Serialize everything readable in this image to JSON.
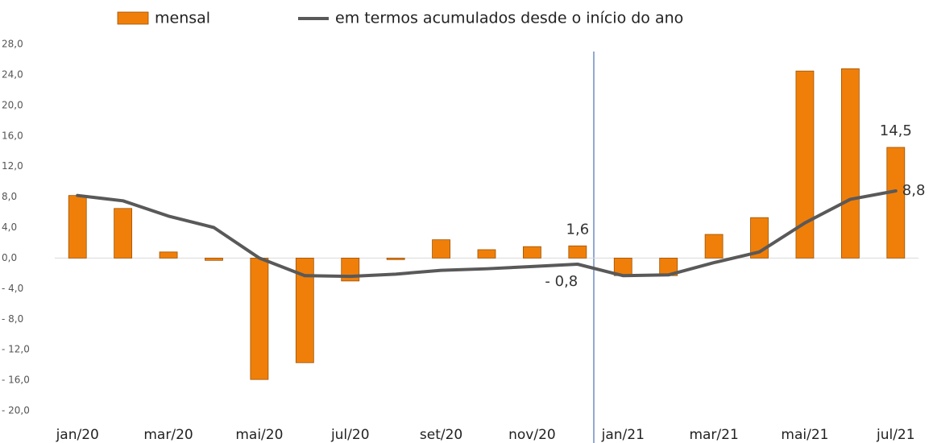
{
  "chart_data": {
    "type": "bar_line",
    "categories": [
      "jan/20",
      null,
      "mar/20",
      null,
      "mai/20",
      null,
      "jul/20",
      null,
      "set/20",
      null,
      "nov/20",
      null,
      "jan/21",
      null,
      "mar/21",
      null,
      "mai/21",
      null,
      "jul/21"
    ],
    "series": [
      {
        "name": "mensal",
        "type": "bar",
        "color": "#f07f09",
        "values": [
          8.2,
          6.5,
          0.8,
          -0.3,
          -15.9,
          -13.7,
          -3.0,
          -0.2,
          2.4,
          1.1,
          1.5,
          1.6,
          -2.3,
          -2.3,
          3.1,
          5.3,
          24.5,
          24.8,
          14.5
        ],
        "value_labels": [
          null,
          null,
          null,
          null,
          null,
          null,
          null,
          null,
          null,
          null,
          null,
          "1,6",
          null,
          null,
          null,
          null,
          null,
          null,
          "14,5"
        ]
      },
      {
        "name": "em termos acumulados desde o início do ano",
        "type": "line",
        "color": "#595959",
        "values": [
          8.2,
          7.5,
          5.5,
          4.0,
          0.0,
          -2.3,
          -2.4,
          -2.1,
          -1.6,
          -1.4,
          -1.1,
          -0.8,
          -2.3,
          -2.2,
          -0.6,
          0.8,
          4.6,
          7.7,
          8.8
        ],
        "value_labels": [
          null,
          null,
          null,
          null,
          null,
          null,
          null,
          null,
          null,
          null,
          null,
          "- 0,8",
          null,
          null,
          null,
          null,
          null,
          null,
          "8,8"
        ]
      }
    ],
    "ylim": [
      -20,
      28
    ],
    "yticks": [
      {
        "value": 28,
        "label": "28,0"
      },
      {
        "value": 24,
        "label": "24,0"
      },
      {
        "value": 20,
        "label": "20,0"
      },
      {
        "value": 16,
        "label": "16,0"
      },
      {
        "value": 12,
        "label": "12,0"
      },
      {
        "value": 8,
        "label": "8,0"
      },
      {
        "value": 4,
        "label": "4,0"
      },
      {
        "value": 0,
        "label": "0,0"
      },
      {
        "value": -4,
        "label": "- 4,0"
      },
      {
        "value": -8,
        "label": "- 8,0"
      },
      {
        "value": -12,
        "label": "- 12,0"
      },
      {
        "value": -16,
        "label": "- 16,0"
      },
      {
        "value": -20,
        "label": "- 20,0"
      }
    ],
    "grid": false
  }
}
